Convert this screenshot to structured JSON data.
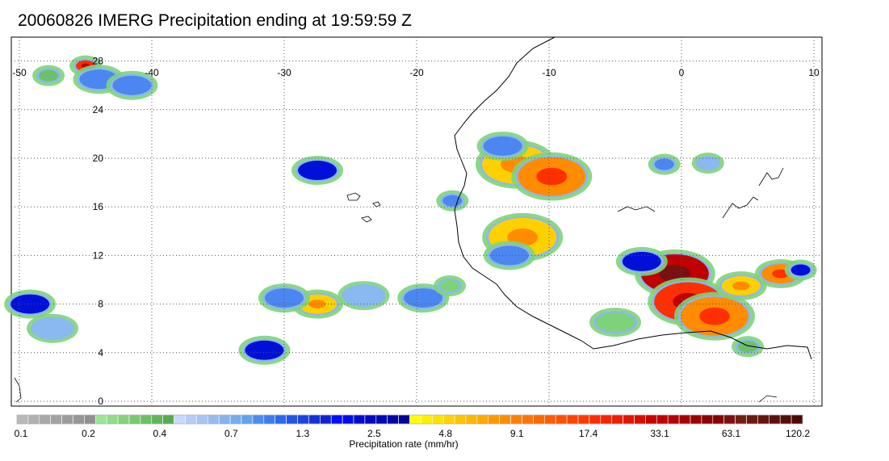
{
  "title": "20060826 IMERG Precipitation ending at 19:59:59 Z",
  "map": {
    "lon_ticks": [
      "-50",
      "-40",
      "-30",
      "-20",
      "-10",
      "0",
      "10"
    ],
    "lat_ticks": [
      "28",
      "24",
      "20",
      "16",
      "12",
      "8",
      "4",
      "0"
    ],
    "lon_range": [
      -50,
      10
    ],
    "lat_range": [
      0,
      29.5
    ],
    "grid": true,
    "rain_cells": [
      {
        "lon": -45.0,
        "lat": 27.6,
        "rate": 17.4,
        "size": "s"
      },
      {
        "lon": -44.0,
        "lat": 26.5,
        "rate": 1.3,
        "size": "m"
      },
      {
        "lon": -47.8,
        "lat": 26.8,
        "rate": 0.4,
        "size": "s"
      },
      {
        "lon": -41.5,
        "lat": 26.0,
        "rate": 2.0,
        "size": "m"
      },
      {
        "lon": -27.5,
        "lat": 19.0,
        "rate": 2.5,
        "size": "m"
      },
      {
        "lon": -12.5,
        "lat": 19.5,
        "rate": 4.8,
        "size": "l"
      },
      {
        "lon": -9.8,
        "lat": 18.5,
        "rate": 9.1,
        "size": "l"
      },
      {
        "lon": -13.5,
        "lat": 21.0,
        "rate": 1.3,
        "size": "m"
      },
      {
        "lon": -12.0,
        "lat": 13.5,
        "rate": 4.8,
        "size": "l"
      },
      {
        "lon": -13.0,
        "lat": 12.0,
        "rate": 1.3,
        "size": "m"
      },
      {
        "lon": -27.5,
        "lat": 8.0,
        "rate": 4.8,
        "size": "m"
      },
      {
        "lon": -30.0,
        "lat": 8.5,
        "rate": 1.3,
        "size": "m"
      },
      {
        "lon": -24.0,
        "lat": 8.7,
        "rate": 0.7,
        "size": "m"
      },
      {
        "lon": -19.5,
        "lat": 8.5,
        "rate": 1.3,
        "size": "m"
      },
      {
        "lon": -31.5,
        "lat": 4.2,
        "rate": 2.5,
        "size": "m"
      },
      {
        "lon": -49.2,
        "lat": 8.0,
        "rate": 2.5,
        "size": "m"
      },
      {
        "lon": -47.5,
        "lat": 6.0,
        "rate": 0.7,
        "size": "m"
      },
      {
        "lon": -0.5,
        "lat": 10.5,
        "rate": 33.1,
        "size": "l"
      },
      {
        "lon": 0.5,
        "lat": 8.2,
        "rate": 17.4,
        "size": "l"
      },
      {
        "lon": 2.5,
        "lat": 7.0,
        "rate": 9.1,
        "size": "l"
      },
      {
        "lon": -3.0,
        "lat": 11.5,
        "rate": 2.5,
        "size": "m"
      },
      {
        "lon": 4.5,
        "lat": 9.5,
        "rate": 4.8,
        "size": "m"
      },
      {
        "lon": 7.5,
        "lat": 10.5,
        "rate": 9.1,
        "size": "m"
      },
      {
        "lon": 9.0,
        "lat": 10.8,
        "rate": 2.5,
        "size": "s"
      },
      {
        "lon": -1.3,
        "lat": 19.5,
        "rate": 1.3,
        "size": "s"
      },
      {
        "lon": 2.0,
        "lat": 19.6,
        "rate": 0.7,
        "size": "s"
      },
      {
        "lon": -5.0,
        "lat": 6.5,
        "rate": 0.2,
        "size": "m"
      },
      {
        "lon": 5.0,
        "lat": 4.5,
        "rate": 0.4,
        "size": "s"
      },
      {
        "lon": -17.5,
        "lat": 9.5,
        "rate": 0.2,
        "size": "s"
      },
      {
        "lon": -17.3,
        "lat": 16.5,
        "rate": 1.3,
        "size": "s"
      }
    ]
  },
  "colorbar": {
    "label": "Precipitation rate (mm/hr)",
    "tick_labels": [
      "0.1",
      "0.2",
      "0.4",
      "0.7",
      "1.3",
      "2.5",
      "4.8",
      "9.1",
      "17.4",
      "33.1",
      "63.1",
      "120.2"
    ],
    "groups": [
      {
        "name": "gray",
        "colors": [
          "#b8b8b8",
          "#b0b0b0",
          "#a8a8a8",
          "#a2a2a2",
          "#9c9c9c",
          "#969696",
          "#909090"
        ]
      },
      {
        "name": "green",
        "colors": [
          "#9ce495",
          "#90dc88",
          "#84d27c",
          "#78c870",
          "#6cbe64",
          "#62b45a",
          "#58aa50"
        ]
      },
      {
        "name": "light-blue",
        "colors": [
          "#c8d8ff",
          "#b8ccfa",
          "#a8c4f4",
          "#96bcee",
          "#84b4ea",
          "#74acec",
          "#62a2ee"
        ]
      },
      {
        "name": "blue",
        "colors": [
          "#4c8cf0",
          "#3c7cf0",
          "#2c68ee",
          "#2054ea",
          "#1a44e2",
          "#1430d8",
          "#1024ce"
        ]
      },
      {
        "name": "navy",
        "colors": [
          "#0010f8",
          "#000ee6",
          "#000cd4",
          "#000ac4",
          "#0008b4",
          "#0006a6",
          "#000498"
        ]
      },
      {
        "name": "yellow",
        "colors": [
          "#ffff00",
          "#ffee00",
          "#ffe000",
          "#ffd200",
          "#ffc400",
          "#ffb600",
          "#ffa800"
        ]
      },
      {
        "name": "orange",
        "colors": [
          "#ff9800",
          "#ff8c00",
          "#ff8000",
          "#ff7400",
          "#ff6800",
          "#ff5c00",
          "#ff5000"
        ]
      },
      {
        "name": "red",
        "colors": [
          "#ff4400",
          "#ff3800",
          "#ff2c00",
          "#f82400",
          "#ee1c00",
          "#e41400",
          "#da0c00"
        ]
      },
      {
        "name": "dark-red",
        "colors": [
          "#cc0000",
          "#c00000",
          "#b40000",
          "#a80000",
          "#9c0000",
          "#900000",
          "#860000"
        ]
      },
      {
        "name": "brown",
        "colors": [
          "#7c1010",
          "#742010",
          "#6c1a10",
          "#641410",
          "#5c1010",
          "#540c0c",
          "#4c0808"
        ]
      }
    ],
    "rate_color_stops": [
      {
        "rate": 0.1,
        "color": "#a0a0a0"
      },
      {
        "rate": 0.2,
        "color": "#7ed37a"
      },
      {
        "rate": 0.4,
        "color": "#6cc069"
      },
      {
        "rate": 0.7,
        "color": "#8ab8f0"
      },
      {
        "rate": 1.3,
        "color": "#4c86f0"
      },
      {
        "rate": 2.5,
        "color": "#0010d8"
      },
      {
        "rate": 4.8,
        "color": "#ffd000"
      },
      {
        "rate": 9.1,
        "color": "#ff8c00"
      },
      {
        "rate": 17.4,
        "color": "#ff3000"
      },
      {
        "rate": 33.1,
        "color": "#c00000"
      },
      {
        "rate": 63.1,
        "color": "#7a1010"
      }
    ]
  }
}
